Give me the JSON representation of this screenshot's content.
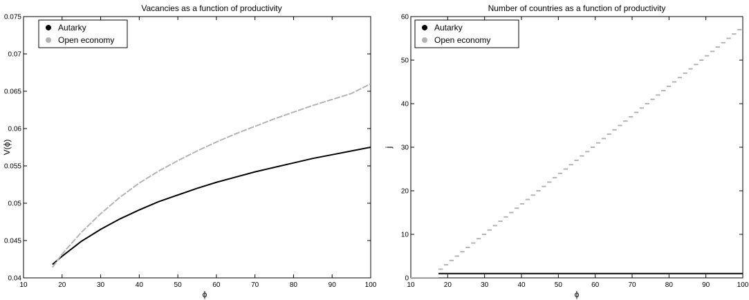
{
  "chart_data": [
    {
      "type": "line",
      "title": "Vacancies as a function of productivity",
      "xlabel": "ϕ",
      "ylabel": "V(ϕ)",
      "xlim": [
        10,
        100
      ],
      "ylim": [
        0.04,
        0.075
      ],
      "xticks": [
        10,
        20,
        30,
        40,
        50,
        60,
        70,
        80,
        90,
        100
      ],
      "xtick_labels": [
        "10",
        "20",
        "30",
        "40",
        "50",
        "60",
        "70",
        "80",
        "90",
        "100"
      ],
      "yticks": [
        0.04,
        0.045,
        0.05,
        0.055,
        0.06,
        0.065,
        0.07,
        0.075
      ],
      "ytick_labels": [
        "0.04",
        "0.045",
        "0.05",
        "0.055",
        "0.06",
        "0.065",
        "0.07",
        "0.075"
      ],
      "legend_position": "top-left",
      "grid": false,
      "series": [
        {
          "name": "Autarky",
          "color": "#000000",
          "style": "solid",
          "x": [
            17.5,
            20,
            25,
            30,
            35,
            40,
            45,
            50,
            55,
            60,
            65,
            70,
            75,
            80,
            85,
            90,
            95,
            100
          ],
          "y": [
            0.0418,
            0.0429,
            0.0449,
            0.0465,
            0.0479,
            0.0491,
            0.0502,
            0.0511,
            0.052,
            0.0528,
            0.0535,
            0.0542,
            0.0548,
            0.0554,
            0.056,
            0.0565,
            0.057,
            0.0575
          ]
        },
        {
          "name": "Open economy",
          "color": "#b3b3b3",
          "style": "dashed-steps",
          "x": [
            17.5,
            20,
            25,
            30,
            35,
            40,
            45,
            50,
            55,
            60,
            65,
            70,
            75,
            80,
            85,
            90,
            95,
            100
          ],
          "y": [
            0.0414,
            0.0432,
            0.0461,
            0.0486,
            0.0508,
            0.0527,
            0.0543,
            0.0557,
            0.057,
            0.0582,
            0.0593,
            0.0603,
            0.0613,
            0.0622,
            0.0631,
            0.0639,
            0.0647,
            0.066
          ]
        }
      ]
    },
    {
      "type": "line",
      "title": "Number of countries as a function of productivity",
      "xlabel": "ϕ",
      "ylabel": "j",
      "xlim": [
        10,
        100
      ],
      "ylim": [
        0,
        60
      ],
      "xticks": [
        10,
        20,
        30,
        40,
        50,
        60,
        70,
        80,
        90,
        100
      ],
      "xtick_labels": [
        "10",
        "20",
        "30",
        "40",
        "50",
        "60",
        "70",
        "80",
        "90",
        "100"
      ],
      "yticks": [
        0,
        10,
        20,
        30,
        40,
        50,
        60
      ],
      "ytick_labels": [
        "0",
        "10",
        "20",
        "30",
        "40",
        "50",
        "60"
      ],
      "legend_position": "top-left",
      "grid": false,
      "series": [
        {
          "name": "Autarky",
          "color": "#000000",
          "style": "solid",
          "x": [
            17.5,
            100
          ],
          "y": [
            1,
            1
          ]
        },
        {
          "name": "Open economy",
          "color": "#b3b3b3",
          "style": "steps",
          "x": [
            10,
            17.5,
            17.5,
            100
          ],
          "y": [
            0,
            0,
            2,
            57
          ]
        }
      ]
    }
  ]
}
